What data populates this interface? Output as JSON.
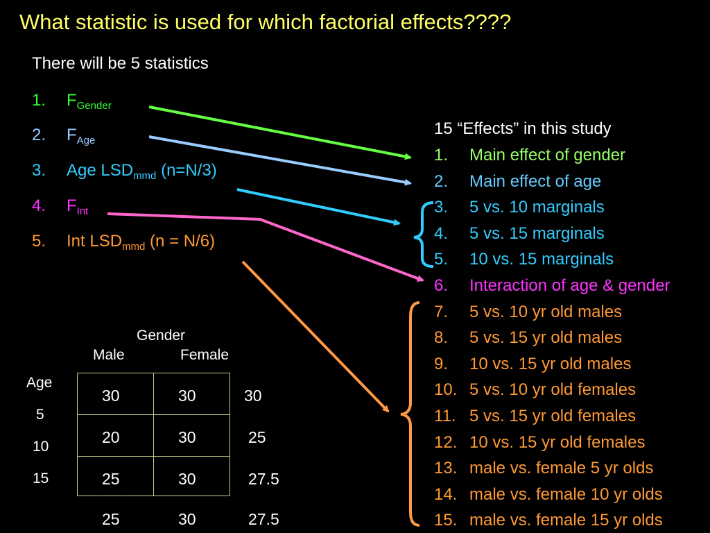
{
  "title": "What statistic is used for which factorial effects????",
  "subtitle": "There will be 5 statistics",
  "stats": [
    {
      "num": "1.",
      "main": "F",
      "sub": "Gender",
      "suffix": "",
      "color": "#33ff33"
    },
    {
      "num": "2.",
      "main": "F",
      "sub": "Age",
      "suffix": "",
      "color": "#99ccff"
    },
    {
      "num": "3.",
      "main": "Age LSD",
      "sub": "mmd",
      "suffix": " (n=N/3)",
      "color": "#33ccff"
    },
    {
      "num": "4.",
      "main": "F",
      "sub": "Int",
      "suffix": "",
      "color": "#ff33ff"
    },
    {
      "num": "5.",
      "main": "Int LSD",
      "sub": "mmd",
      "suffix": " (n = N/6)",
      "color": "#ff9933"
    }
  ],
  "effects_header": "15 “Effects” in this study",
  "effects": [
    {
      "num": "1.",
      "text": "Main effect of gender",
      "color": "#99ff66"
    },
    {
      "num": "2.",
      "text": "Main effect of age",
      "color": "#66ccff"
    },
    {
      "num": "3.",
      "text": "5 vs. 10 marginals",
      "color": "#33ccff"
    },
    {
      "num": "4.",
      "text": "5 vs. 15 marginals",
      "color": "#33ccff"
    },
    {
      "num": "5.",
      "text": "10 vs. 15 marginals",
      "color": "#33ccff"
    },
    {
      "num": "6.",
      "text": "Interaction of age & gender",
      "color": "#ff33ff"
    },
    {
      "num": "7.",
      "text": "5 vs. 10 yr old males",
      "color": "#ff9933"
    },
    {
      "num": "8.",
      "text": "5 vs. 15 yr old males",
      "color": "#ff9933"
    },
    {
      "num": "9.",
      "text": "10 vs. 15 yr old males",
      "color": "#ff9933"
    },
    {
      "num": "10.",
      "text": "5 vs. 10 yr old females",
      "color": "#ff9933"
    },
    {
      "num": "11.",
      "text": "5 vs. 15 yr old females",
      "color": "#ff9933"
    },
    {
      "num": "12.",
      "text": "10 vs. 15 yr old females",
      "color": "#ff9933"
    },
    {
      "num": "13.",
      "text": "male vs. female 5 yr olds",
      "color": "#ff9933"
    },
    {
      "num": "14.",
      "text": "male vs. female 10 yr olds",
      "color": "#ff9933"
    },
    {
      "num": "15.",
      "text": "male vs. female 15 yr olds",
      "color": "#ff9933"
    }
  ],
  "table": {
    "gender_label": "Gender",
    "male_label": "Male",
    "female_label": "Female",
    "age_label": "Age",
    "age_levels": [
      "5",
      "10",
      "15"
    ],
    "rows": [
      {
        "male": "30",
        "female": "30",
        "marginal": "30"
      },
      {
        "male": "20",
        "female": "30",
        "marginal": "25"
      },
      {
        "male": "25",
        "female": "30",
        "marginal": "27.5"
      }
    ],
    "col_marginals": {
      "male": "25",
      "female": "30",
      "grand": "27.5"
    }
  }
}
